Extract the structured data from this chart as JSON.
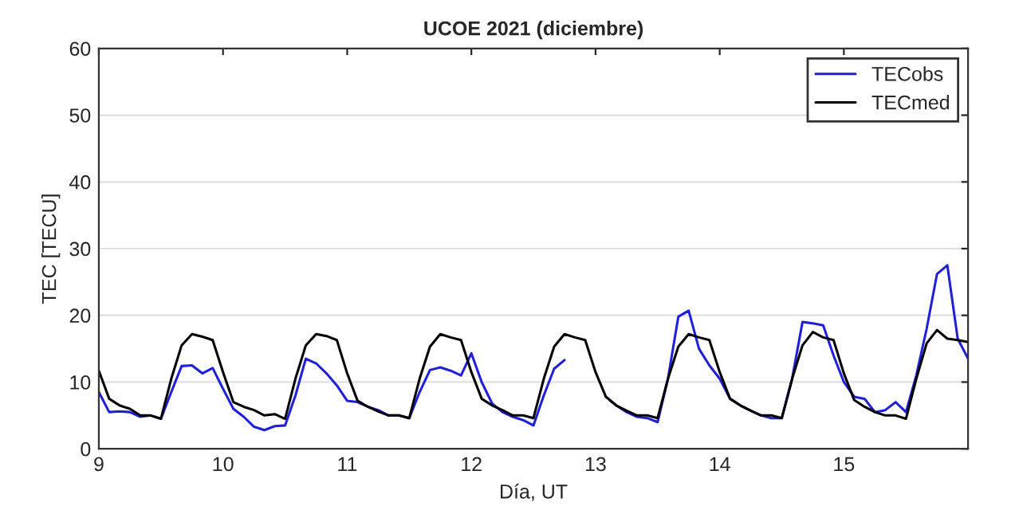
{
  "chart_data": {
    "type": "line",
    "title": "UCOE 2021 (diciembre)",
    "xlabel": "Día, UT",
    "ylabel": "TEC [TECU]",
    "x": [
      9,
      9.0833,
      9.1667,
      9.25,
      9.3333,
      9.4167,
      9.5,
      9.5833,
      9.6667,
      9.75,
      9.8333,
      9.9167,
      10,
      10.0833,
      10.1667,
      10.25,
      10.3333,
      10.4167,
      10.5,
      10.5833,
      10.6667,
      10.75,
      10.8333,
      10.9167,
      11,
      11.0833,
      11.1667,
      11.25,
      11.3333,
      11.4167,
      11.5,
      11.5833,
      11.6667,
      11.75,
      11.8333,
      11.9167,
      12,
      12.0833,
      12.1667,
      12.25,
      12.3333,
      12.4167,
      12.5,
      12.5833,
      12.6667,
      12.75,
      12.8333,
      12.9167,
      13,
      13.0833,
      13.1667,
      13.25,
      13.3333,
      13.4167,
      13.5,
      13.5833,
      13.6667,
      13.75,
      13.8333,
      13.9167,
      14,
      14.0833,
      14.1667,
      14.25,
      14.3333,
      14.4167,
      14.5,
      14.5833,
      14.6667,
      14.75,
      14.8333,
      14.9167,
      15,
      15.0833,
      15.1667,
      15.25,
      15.3333,
      15.4167,
      15.5,
      15.5833,
      15.6667,
      15.75,
      15.8333,
      15.9167,
      16
    ],
    "series": [
      {
        "name": "TECobs",
        "color": "#2020d8",
        "values": [
          8.5,
          5.5,
          5.6,
          5.5,
          4.8,
          5.0,
          4.5,
          8.5,
          12.4,
          12.5,
          11.3,
          12.1,
          9.0,
          6.0,
          4.8,
          3.3,
          2.8,
          3.4,
          3.5,
          8.0,
          13.5,
          12.8,
          11.3,
          9.5,
          7.2,
          7.0,
          6.3,
          5.8,
          5.0,
          5.0,
          4.6,
          8.5,
          11.8,
          12.2,
          11.7,
          11.0,
          14.3,
          10.0,
          6.8,
          5.5,
          4.8,
          4.3,
          3.5,
          8.0,
          12.0,
          13.3,
          null,
          null,
          null,
          7.8,
          6.5,
          5.5,
          4.8,
          4.6,
          4.0,
          10.5,
          19.8,
          20.7,
          15.0,
          12.5,
          10.5,
          7.5,
          6.5,
          5.7,
          5.0,
          4.6,
          4.6,
          10.5,
          19.0,
          18.8,
          18.5,
          14.0,
          10.0,
          7.8,
          7.5,
          5.5,
          5.8,
          7.0,
          5.5,
          11.0,
          18.0,
          26.2,
          27.5,
          16.5,
          13.5
        ]
      },
      {
        "name": "TECmed",
        "color": "#000000",
        "values": [
          11.7,
          7.5,
          6.5,
          6.0,
          5.0,
          5.0,
          4.5,
          10.5,
          15.5,
          17.2,
          16.8,
          16.3,
          11.5,
          7.0,
          6.3,
          5.8,
          5.0,
          5.2,
          4.5,
          10.5,
          15.5,
          17.2,
          16.9,
          16.3,
          11.3,
          7.2,
          6.3,
          5.6,
          5.0,
          5.0,
          4.6,
          10.5,
          15.3,
          17.2,
          16.7,
          16.3,
          11.5,
          7.5,
          6.5,
          5.8,
          5.0,
          5.0,
          4.6,
          10.5,
          15.3,
          17.2,
          16.7,
          16.3,
          11.5,
          7.8,
          6.5,
          5.7,
          5.0,
          5.0,
          4.6,
          10.5,
          15.3,
          17.2,
          16.7,
          16.3,
          11.5,
          7.5,
          6.5,
          5.7,
          5.0,
          5.0,
          4.6,
          10.5,
          15.5,
          17.5,
          16.7,
          16.3,
          11.3,
          7.3,
          6.3,
          5.5,
          5.0,
          5.0,
          4.5,
          10.5,
          15.8,
          17.8,
          16.5,
          16.3,
          16.0
        ]
      }
    ],
    "xlim": [
      9,
      16
    ],
    "xticks": [
      9,
      10,
      11,
      12,
      13,
      14,
      15
    ],
    "ylim": [
      0,
      60
    ],
    "yticks": [
      0,
      10,
      20,
      30,
      40,
      50,
      60
    ],
    "grid": "y",
    "legend": "top right",
    "line_style": "solid",
    "marker": "none"
  }
}
